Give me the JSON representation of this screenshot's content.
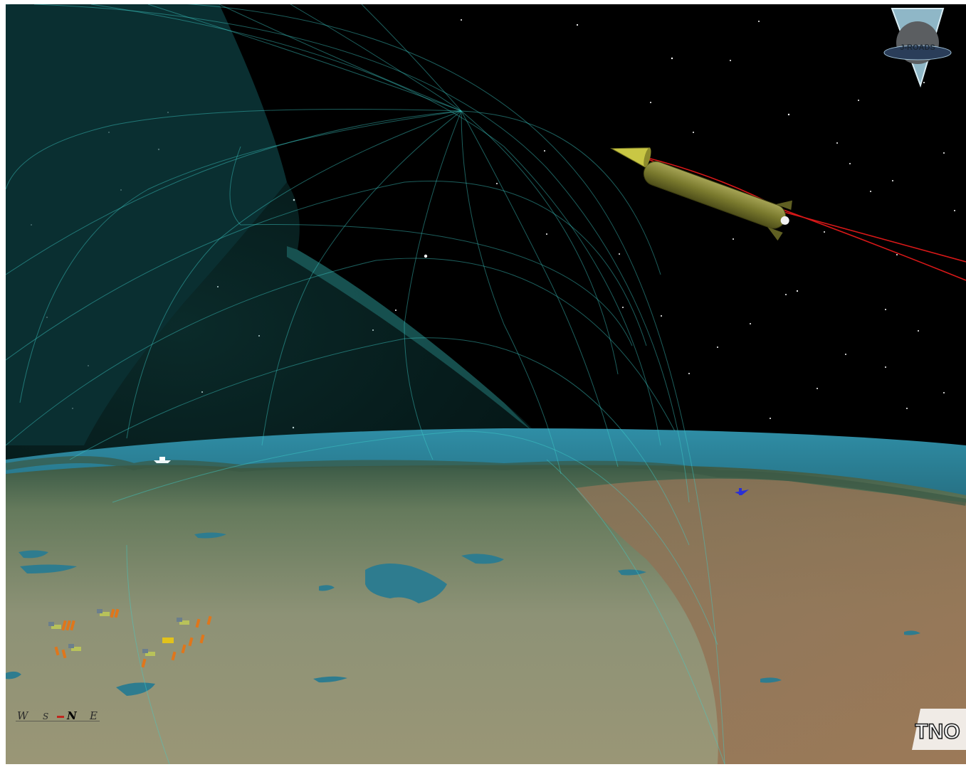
{
  "viewport": {
    "label": "3D globe view",
    "colors": {
      "space": "#000000",
      "shield_grid": "#35c9c6",
      "sea": "#2c7f94",
      "land": "#8f9479",
      "missile": "#7a7a2e",
      "trajectory": "#d81818"
    }
  },
  "compass": {
    "west": "W",
    "south": "S",
    "north": "N",
    "east": "E"
  },
  "logos": {
    "top_right": {
      "text": "J-ROADS",
      "icon": "j-roads-emblem"
    },
    "bottom_right": {
      "text": "TNO",
      "icon": "tno-logo"
    }
  },
  "units": {
    "ground_units": [
      "unit-cluster-1",
      "unit-cluster-2",
      "unit-cluster-3",
      "unit-cluster-4",
      "unit-cluster-5"
    ],
    "ship": "ship-icon",
    "aircraft": "aircraft-icon"
  }
}
